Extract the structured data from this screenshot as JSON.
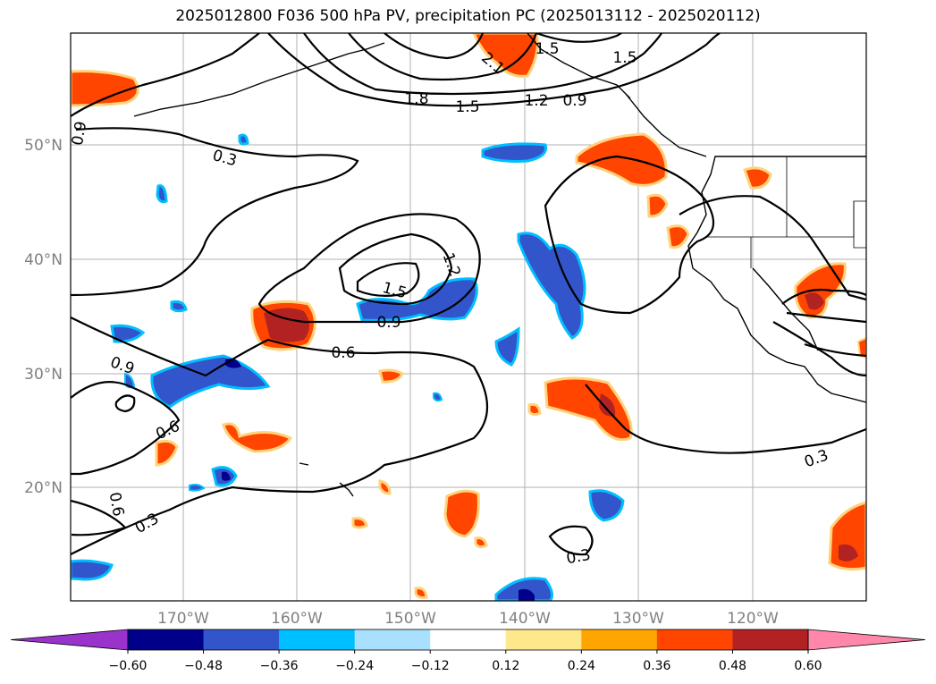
{
  "title": "2025012800 F036 500 hPa PV, precipitation PC (2025013112 - 2025020112)",
  "lat_labels": [
    "50°N",
    "40°N",
    "30°N",
    "20°N"
  ],
  "lon_labels": [
    "170°W",
    "160°W",
    "150°W",
    "140°W",
    "130°W",
    "120°W"
  ],
  "contour_labels": [
    "0.9",
    "0.3",
    "1.8",
    "1.5",
    "1.2",
    "0.9",
    "2.1",
    "1.5",
    "1.5",
    "1.2",
    "1.5",
    "0.9",
    "0.6",
    "0.9",
    "0.6",
    "0.6",
    "0.3",
    "0.3",
    "0.3"
  ],
  "colorbar": {
    "ticks": [
      "−0.60",
      "−0.48",
      "−0.36",
      "−0.24",
      "−0.12",
      "0.12",
      "0.24",
      "0.36",
      "0.48",
      "0.60"
    ],
    "colors": [
      "#9933cc",
      "#00008b",
      "#3355cc",
      "#00bfff",
      "#aae0ff",
      "#ffffff",
      "#ffe88c",
      "#ffa500",
      "#ff4500",
      "#b22222",
      "#ff88aa"
    ]
  }
}
